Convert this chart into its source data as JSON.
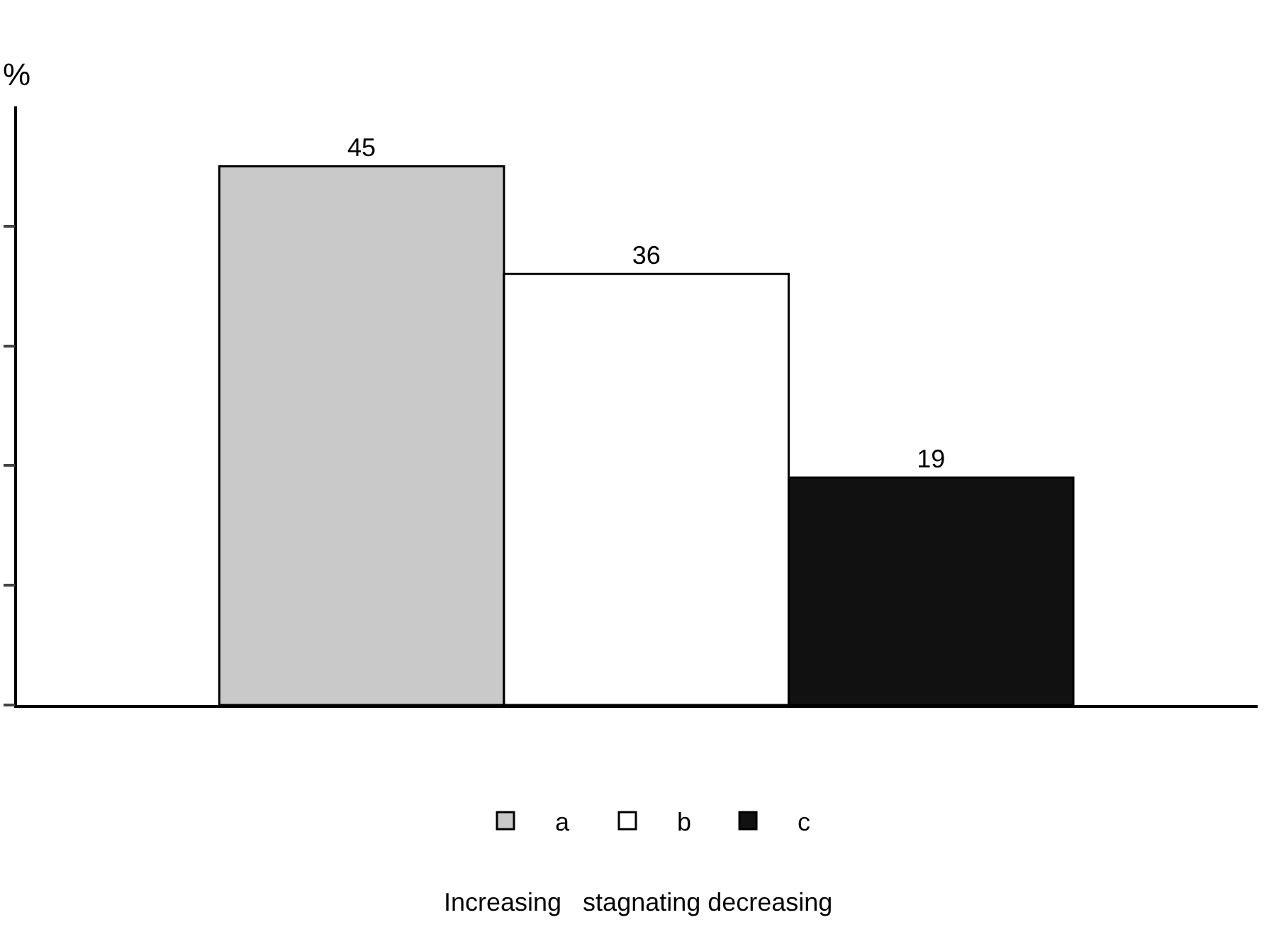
{
  "chart_data": {
    "type": "bar",
    "ylabel": "%",
    "categories": [
      null
    ],
    "series": [
      {
        "name": "a",
        "color": "#c9c9c9",
        "values": [
          45
        ]
      },
      {
        "name": "b",
        "color": "#ffffff",
        "values": [
          36
        ]
      },
      {
        "name": "c",
        "color": "#111111",
        "values": [
          19
        ]
      }
    ],
    "ylim": [
      0,
      50
    ],
    "yticks": [
      {
        "value": 0,
        "label": null
      },
      {
        "value": 10,
        "label": null
      },
      {
        "value": 20,
        "label": null
      },
      {
        "value": 30,
        "label": null
      },
      {
        "value": 40,
        "label": null
      }
    ],
    "data_labels": true,
    "grid": false,
    "legend": "bottom",
    "annotations": [
      "Increasing   stagnating decreasing"
    ]
  }
}
